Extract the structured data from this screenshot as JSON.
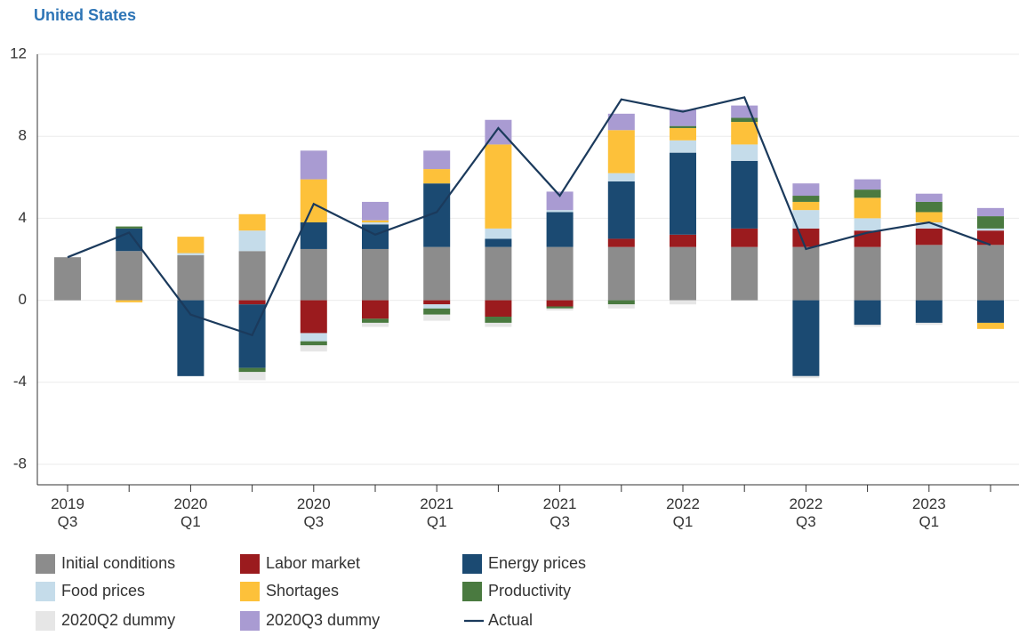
{
  "chart_data": {
    "type": "bar",
    "stacked": true,
    "title": "United States",
    "categories": [
      "2019 Q3",
      null,
      "2020 Q1",
      null,
      "2020 Q3",
      null,
      "2021 Q1",
      null,
      "2021 Q3",
      null,
      "2022 Q1",
      null,
      "2022 Q3",
      null,
      "2023 Q1",
      null
    ],
    "ylim": [
      -9,
      12
    ],
    "yticks": [
      -8,
      -4,
      0,
      4,
      8,
      12
    ],
    "grid": true,
    "series": [
      {
        "name": "Initial conditions",
        "color": "#8c8c8c",
        "values": [
          2.1,
          2.4,
          2.2,
          2.4,
          2.5,
          2.5,
          2.6,
          2.6,
          2.6,
          2.6,
          2.6,
          2.6,
          2.6,
          2.6,
          2.7,
          2.7
        ]
      },
      {
        "name": "Labor market",
        "color": "#9b1b1e",
        "values": [
          0,
          0,
          0,
          -0.2,
          -1.6,
          -0.9,
          -0.2,
          -0.8,
          -0.3,
          0.4,
          0.6,
          0.9,
          0.9,
          0.8,
          0.8,
          0.7
        ]
      },
      {
        "name": "Energy prices",
        "color": "#1b4a72",
        "values": [
          0,
          1.1,
          -3.7,
          -3.1,
          1.3,
          1.2,
          3.1,
          0.4,
          1.7,
          2.8,
          4.0,
          3.3,
          -3.7,
          -1.2,
          -1.1,
          -1.1
        ]
      },
      {
        "name": "Food prices",
        "color": "#c5dcea",
        "values": [
          0,
          0,
          0.1,
          1.0,
          -0.4,
          0.1,
          -0.2,
          0.5,
          0.1,
          0.4,
          0.6,
          0.8,
          0.9,
          0.6,
          0.3,
          0.1
        ]
      },
      {
        "name": "Shortages",
        "color": "#fdc13a",
        "values": [
          0,
          -0.1,
          0.8,
          0.8,
          2.1,
          0.1,
          0.7,
          4.1,
          0,
          2.1,
          0.6,
          1.1,
          0.4,
          1.0,
          0.5,
          -0.3
        ]
      },
      {
        "name": "Productivity",
        "color": "#4a7a40",
        "values": [
          0,
          0.1,
          0,
          -0.2,
          -0.2,
          -0.2,
          -0.3,
          -0.3,
          -0.1,
          -0.2,
          0.1,
          0.2,
          0.3,
          0.4,
          0.5,
          0.6
        ]
      },
      {
        "name": "2020Q2 dummy",
        "color": "#e6e6e6",
        "values": [
          0,
          0,
          0,
          -0.4,
          -0.3,
          -0.2,
          -0.3,
          -0.2,
          -0.1,
          -0.2,
          -0.2,
          0,
          -0.1,
          -0.1,
          -0.1,
          0
        ]
      },
      {
        "name": "2020Q3 dummy",
        "color": "#a99bd2",
        "values": [
          0,
          0,
          0,
          0,
          1.4,
          0.9,
          0.9,
          1.2,
          0.9,
          0.8,
          0.8,
          0.6,
          0.6,
          0.5,
          0.4,
          0.4
        ]
      },
      {
        "name": "Actual",
        "type": "line",
        "color": "#1b3a5c",
        "values": [
          2.1,
          3.3,
          -0.7,
          -1.7,
          4.7,
          3.2,
          4.3,
          8.4,
          5.1,
          9.8,
          9.2,
          9.9,
          2.5,
          3.3,
          3.8,
          2.7
        ]
      }
    ]
  }
}
